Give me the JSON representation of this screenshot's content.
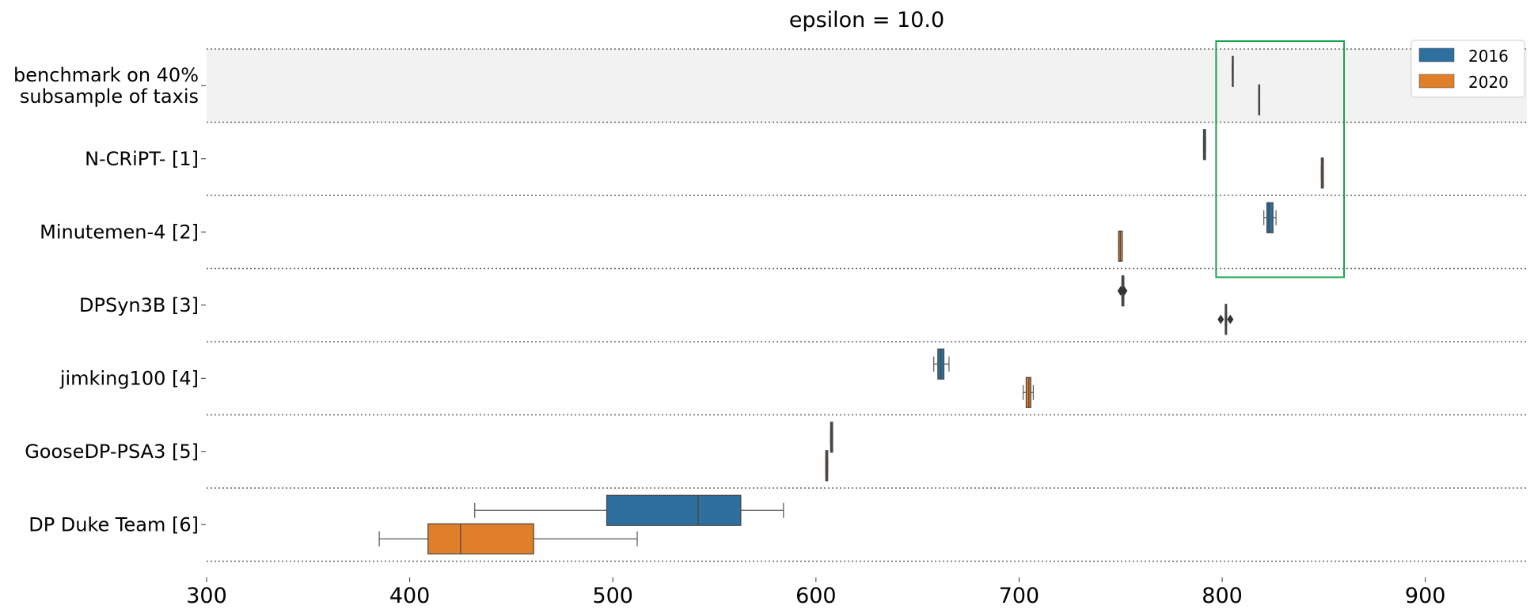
{
  "chart_data": {
    "type": "boxplot",
    "orientation": "horizontal",
    "title": "epsilon = 10.0",
    "xlabel": "",
    "ylabel": "",
    "xlim": [
      300,
      950
    ],
    "xticks": [
      300,
      400,
      500,
      600,
      700,
      800,
      900
    ],
    "grid": false,
    "legend": {
      "position": "top-right",
      "entries": [
        "2016",
        "2020"
      ]
    },
    "series_colors": {
      "2016": "#2e6f9e",
      "2020": "#e07f2a"
    },
    "highlight_color": "#f2f2f2",
    "annotation_box_color": "#16a34a",
    "annotation_box": {
      "x_range": [
        797,
        860
      ],
      "rows_spanned": [
        "benchmark on 40% subsample of taxis",
        "N-CRiPT- [1]",
        "Minutemen-4 [2]"
      ]
    },
    "categories": [
      {
        "label": "benchmark on 40% subsample of taxis",
        "highlight": true,
        "boxes": [
          {
            "series": "2016",
            "whisker_low": 805,
            "q1": 805,
            "median": 805,
            "q3": 805,
            "whisker_high": 805
          },
          {
            "series": "2020",
            "whisker_low": 818,
            "q1": 818,
            "median": 818,
            "q3": 818,
            "whisker_high": 818
          }
        ]
      },
      {
        "label": "N-CRiPT- [1]",
        "boxes": [
          {
            "series": "2016",
            "whisker_low": 790.8,
            "q1": 790.8,
            "median": 791.3,
            "q3": 791.8,
            "whisker_high": 791.8
          },
          {
            "series": "2020",
            "whisker_low": 848.8,
            "q1": 848.8,
            "median": 849.3,
            "q3": 849.8,
            "whisker_high": 849.8
          }
        ]
      },
      {
        "label": "Minutemen-4 [2]",
        "boxes": [
          {
            "series": "2016",
            "whisker_low": 820.5,
            "q1": 822,
            "median": 823,
            "q3": 825,
            "whisker_high": 826.5
          },
          {
            "series": "2020",
            "whisker_low": 749,
            "q1": 749,
            "median": 749.8,
            "q3": 750.8,
            "whisker_high": 750.8
          }
        ]
      },
      {
        "label": "DPSyn3B [3]",
        "boxes": [
          {
            "series": "2016",
            "whisker_low": 750.6,
            "q1": 750.6,
            "median": 751.1,
            "q3": 751.6,
            "whisker_high": 751.6,
            "outliers": [
              750,
              751.8
            ]
          },
          {
            "series": "2020",
            "whisker_low": 801.5,
            "q1": 801.5,
            "median": 801.8,
            "q3": 802.2,
            "whisker_high": 802.2,
            "outliers": [
              799.3,
              804
            ]
          }
        ]
      },
      {
        "label": "jimking100 [4]",
        "boxes": [
          {
            "series": "2016",
            "whisker_low": 658,
            "q1": 660,
            "median": 661.5,
            "q3": 663,
            "whisker_high": 665.5
          },
          {
            "series": "2020",
            "whisker_low": 702,
            "q1": 703.5,
            "median": 704.8,
            "q3": 705.8,
            "whisker_high": 707
          }
        ]
      },
      {
        "label": "GooseDP-PSA3 [5]",
        "boxes": [
          {
            "series": "2016",
            "whisker_low": 607.2,
            "q1": 607.2,
            "median": 607.7,
            "q3": 608.2,
            "whisker_high": 608.2
          },
          {
            "series": "2020",
            "whisker_low": 604.8,
            "q1": 604.8,
            "median": 605.3,
            "q3": 605.8,
            "whisker_high": 605.8
          }
        ]
      },
      {
        "label": "DP Duke Team [6]",
        "boxes": [
          {
            "series": "2016",
            "whisker_low": 432,
            "q1": 497,
            "median": 542,
            "q3": 563,
            "whisker_high": 584
          },
          {
            "series": "2020",
            "whisker_low": 385,
            "q1": 409,
            "median": 425,
            "q3": 461,
            "whisker_high": 512
          }
        ]
      }
    ]
  }
}
